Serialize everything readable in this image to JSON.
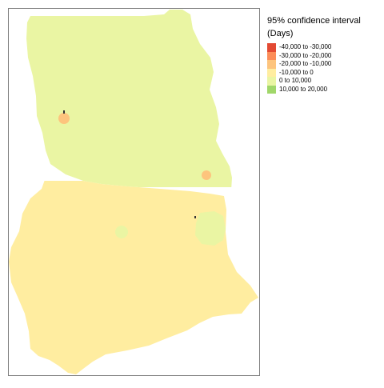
{
  "legend": {
    "title": "95% confidence interval",
    "subtitle": "(Days)",
    "items": [
      {
        "label": "-40,000 to -30,000",
        "color": "#e34a33"
      },
      {
        "label": "-30,000 to -20,000",
        "color": "#fc8d59"
      },
      {
        "label": "-20,000 to -10,000",
        "color": "#fdc47d"
      },
      {
        "label": "-10,000 to 0",
        "color": "#ffeda0"
      },
      {
        "label": "0 to 10,000",
        "color": "#eaf5a3"
      },
      {
        "label": "10,000 to 20,000",
        "color": "#a1d76a"
      }
    ]
  },
  "map": {
    "frame_color": "#7f7f7f",
    "regions": {
      "north": {
        "class": "0 to 10,000",
        "color": "#eaf5a3"
      },
      "south": {
        "class": "-10,000 to 0",
        "color": "#ffeda0"
      }
    }
  }
}
